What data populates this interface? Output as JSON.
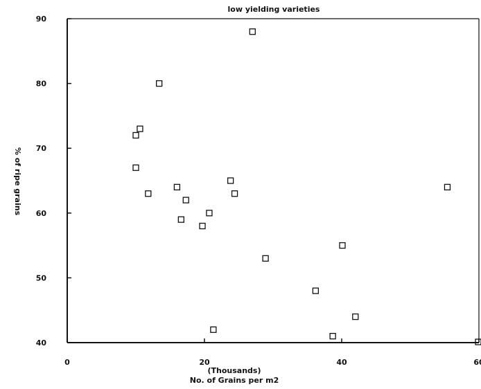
{
  "chart_data": {
    "type": "scatter",
    "title": "low yielding varieties",
    "xlabel": "No. of Grains per m2",
    "xlabel_unit": "(Thousands)",
    "ylabel": "% of ripe grains",
    "xlim": [
      0,
      60
    ],
    "ylim": [
      40,
      90
    ],
    "xticks": [
      0,
      20,
      40,
      60
    ],
    "yticks": [
      40,
      50,
      60,
      70,
      80,
      90
    ],
    "grid": false,
    "marker": "open-square",
    "points": [
      {
        "x": 10.0,
        "y": 72
      },
      {
        "x": 10.6,
        "y": 73
      },
      {
        "x": 13.4,
        "y": 80
      },
      {
        "x": 10.0,
        "y": 67
      },
      {
        "x": 11.8,
        "y": 63
      },
      {
        "x": 16.0,
        "y": 64
      },
      {
        "x": 17.3,
        "y": 62
      },
      {
        "x": 16.6,
        "y": 59
      },
      {
        "x": 19.7,
        "y": 58
      },
      {
        "x": 20.7,
        "y": 60
      },
      {
        "x": 23.8,
        "y": 65
      },
      {
        "x": 24.4,
        "y": 63
      },
      {
        "x": 27.0,
        "y": 88
      },
      {
        "x": 21.3,
        "y": 42
      },
      {
        "x": 28.9,
        "y": 53
      },
      {
        "x": 36.2,
        "y": 48
      },
      {
        "x": 40.1,
        "y": 55
      },
      {
        "x": 38.7,
        "y": 41
      },
      {
        "x": 42.0,
        "y": 44
      },
      {
        "x": 55.4,
        "y": 64
      },
      {
        "x": 60.0,
        "y": 40
      }
    ]
  }
}
